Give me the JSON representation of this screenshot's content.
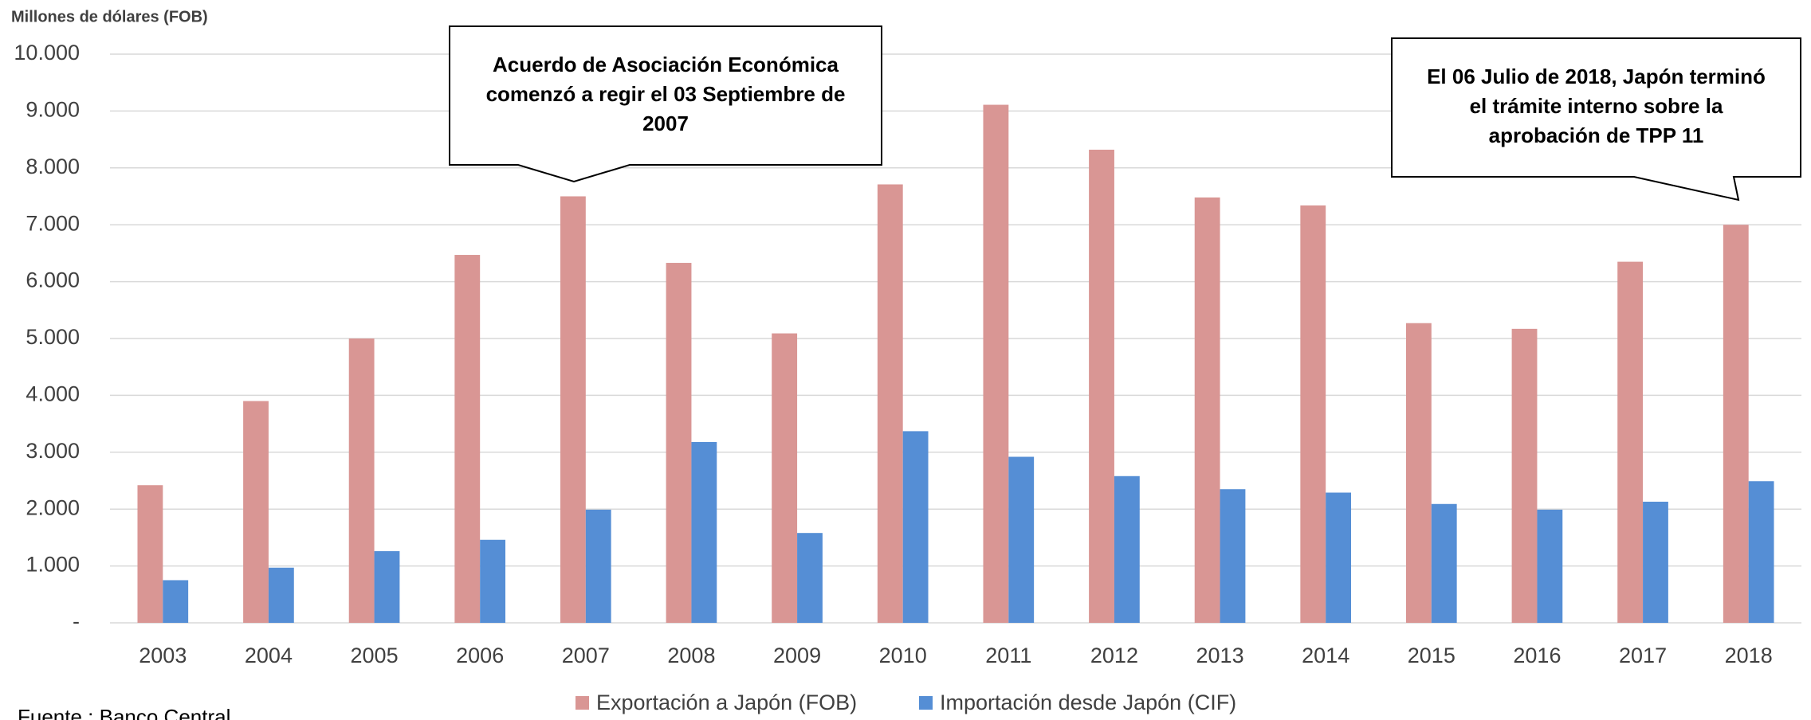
{
  "chart_data": {
    "type": "bar",
    "y_axis_label": "Millones de dólares (FOB)",
    "source": "Fuente : Banco Central",
    "categories": [
      "2003",
      "2004",
      "2005",
      "2006",
      "2007",
      "2008",
      "2009",
      "2010",
      "2011",
      "2012",
      "2013",
      "2014",
      "2015",
      "2016",
      "2017",
      "2018"
    ],
    "series": [
      {
        "name": "Exportación a Japón (FOB)",
        "color": "#d99694",
        "values": [
          2420,
          3900,
          5000,
          6470,
          7500,
          6330,
          5090,
          7710,
          9110,
          8320,
          7480,
          7340,
          5270,
          5170,
          6350,
          7000
        ]
      },
      {
        "name": "Importación desde Japón (CIF)",
        "color": "#558ed5",
        "values": [
          750,
          970,
          1260,
          1460,
          1990,
          3180,
          1580,
          3370,
          2920,
          2580,
          2350,
          2290,
          2090,
          1990,
          2130,
          2490
        ]
      }
    ],
    "ylim": [
      0,
      10000
    ],
    "yticks": [
      {
        "value": 0,
        "label": "-"
      },
      {
        "value": 1000,
        "label": "1.000"
      },
      {
        "value": 2000,
        "label": "2.000"
      },
      {
        "value": 3000,
        "label": "3.000"
      },
      {
        "value": 4000,
        "label": "4.000"
      },
      {
        "value": 5000,
        "label": "5.000"
      },
      {
        "value": 6000,
        "label": "6.000"
      },
      {
        "value": 7000,
        "label": "7.000"
      },
      {
        "value": 8000,
        "label": "8.000"
      },
      {
        "value": 9000,
        "label": "9.000"
      },
      {
        "value": 10000,
        "label": "10.000"
      }
    ],
    "grid": true,
    "legend": "bottom",
    "annotations": [
      {
        "lines": [
          "Acuerdo de Asociación Económica",
          "comenzó a regir el 03 Septiembre de",
          "2007"
        ]
      },
      {
        "lines": [
          "El 06 Julio de 2018, Japón terminó",
          "el trámite interno sobre la",
          "aprobación de TPP 11"
        ]
      }
    ]
  }
}
